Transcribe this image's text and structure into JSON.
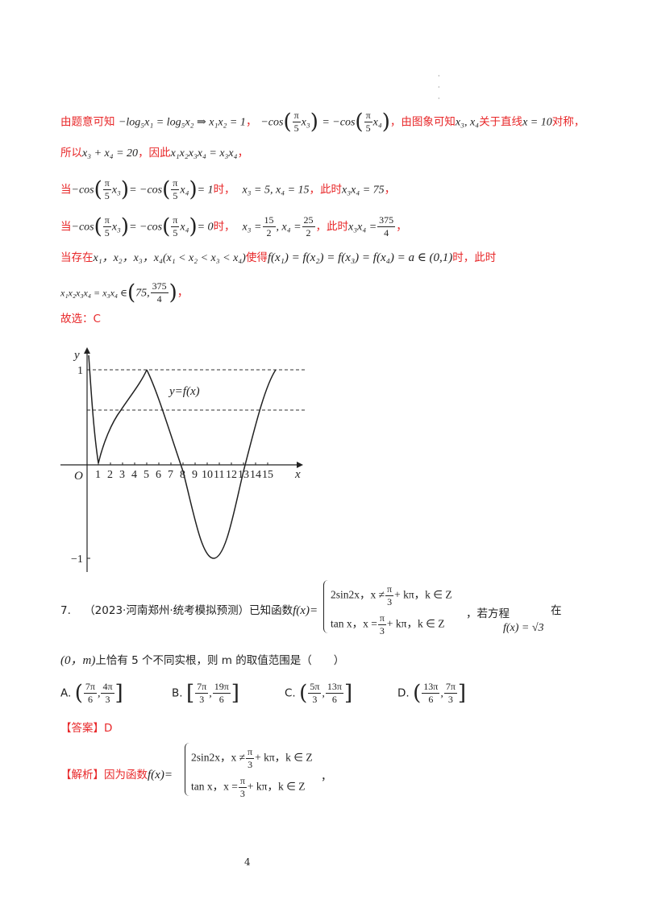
{
  "lines": {
    "l1_intro": "由题意可知",
    "l1_eq1": "−log₅x₁ = log₅x₂ ⇒ x₁x₂ = 1",
    "l1_sep": "，",
    "l1_eq2_pre": "−cos",
    "l1_eq2_mid": "= −cos",
    "l1_text2": "，由图象可知",
    "l1_x3x4": "x₃, x₄",
    "l1_text3": "关于直线",
    "l1_line": "x = 10",
    "l1_text4": "对称，",
    "l2_pre": "所以",
    "l2_eq": "x₃ + x₄ = 20",
    "l2_mid": "，因此",
    "l2_eq2": "x₁x₂x₃x₄ = x₃x₄",
    "l2_end": "，",
    "l3_pre": "当",
    "l3_cos": "−cos",
    "l3_eqmid": "= −cos",
    "l3_eqend": "= 1",
    "l3_shi": "时，",
    "l3_vals": "x₃ = 5, x₄ = 15",
    "l3_ci": "，此时",
    "l3_prod": "x₃x₄ = 75",
    "l3_end": "，",
    "l4_pre": "当",
    "l4_eqend": "= 0",
    "l4_shi": "时，",
    "l4_x3": "x₃ =",
    "l4_x4": ", x₄ =",
    "l4_ci": "，此时",
    "l4_prod": "x₃x₄ =",
    "l4_end": "，",
    "l5_pre": "当存在",
    "l5_vars": "x₁，x₂，x₃，x₄",
    "l5_cond": "(x₁ < x₂ < x₃ < x₄)",
    "l5_mid": "使得",
    "l5_eq": "f(x₁) = f(x₂) = f(x₃) = f(x₄) = a ∈ (0,1)",
    "l5_end": "时，此时",
    "l6_eq": "x₁x₂x₃x₄ = x₃x₄ ∈",
    "l6_int_a": "75,",
    "l6_end": "，",
    "answer_line": "故选：C"
  },
  "fracs": {
    "pi": "π",
    "five": "5",
    "fifteen": "15",
    "two": "2",
    "twentyfive": "25",
    "three75": "375",
    "four": "4",
    "three": "3",
    "six": "6",
    "x3": "x₃",
    "x4": "x₄"
  },
  "graph": {
    "y_axis_label": "y",
    "x_axis_label": "x",
    "origin": "O",
    "tick_one": "1",
    "tick_neg_one": "−1",
    "curve_label": "y=f(x)",
    "x_ticks": [
      "1",
      "2",
      "3",
      "4",
      "5",
      "6",
      "7",
      "8",
      "9",
      "10",
      "11",
      "12",
      "13",
      "14",
      "15"
    ]
  },
  "q7": {
    "num": "7.",
    "source": "（2023·河南郑州·统考模拟预测）已知函数",
    "fx": "f(x)=",
    "case1": "2sin2x，x ≠",
    "case1b": "+ kπ，k ∈ Z",
    "case2": "tan x，x =",
    "case2b": "+ kπ，k ∈ Z",
    "after": "，若方程",
    "eq": "f(x) = √3",
    "zai": "在",
    "line2_int": "(0，m)",
    "line2_text": "上恰有 5 个不同实根，则 m 的取值范围是（　　）"
  },
  "choices": [
    {
      "letter": "A.",
      "a_num": "7π",
      "a_den": "6",
      "b_num": "4π",
      "b_den": "3"
    },
    {
      "letter": "B.",
      "a_num": "7π",
      "a_den": "3",
      "b_num": "19π",
      "b_den": "6"
    },
    {
      "letter": "C.",
      "a_num": "5π",
      "a_den": "3",
      "b_num": "13π",
      "b_den": "6"
    },
    {
      "letter": "D.",
      "a_num": "13π",
      "a_den": "6",
      "b_num": "7π",
      "b_den": "3"
    }
  ],
  "answer": {
    "label": "【答案】",
    "value": "D"
  },
  "analysis": {
    "label": "【解析】",
    "text": "因为函数",
    "fx": "f(x)=",
    "tail": "，"
  },
  "page_number": "4",
  "colors": {
    "accent_red": "#e8282a",
    "text": "#222222"
  }
}
